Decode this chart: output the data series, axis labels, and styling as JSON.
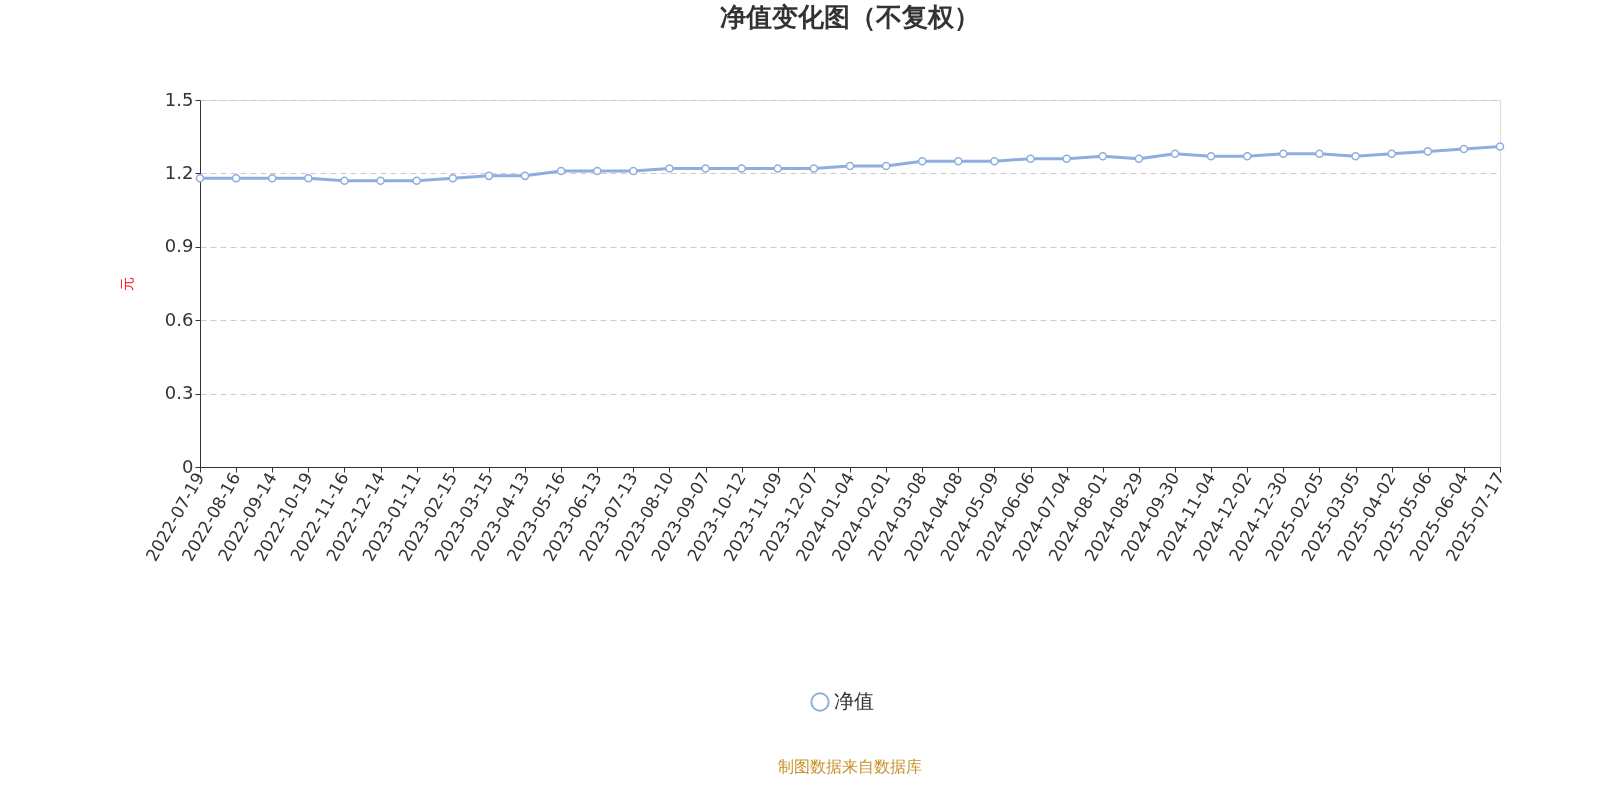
{
  "chart_data": {
    "type": "line",
    "title": "净值变化图（不复权）",
    "ylabel": "元",
    "categories": [
      "2022-07-19",
      "2022-08-16",
      "2022-09-14",
      "2022-10-19",
      "2022-11-16",
      "2022-12-14",
      "2023-01-11",
      "2023-02-15",
      "2023-03-15",
      "2023-04-13",
      "2023-05-16",
      "2023-06-13",
      "2023-07-13",
      "2023-08-10",
      "2023-09-07",
      "2023-10-12",
      "2023-11-09",
      "2023-12-07",
      "2024-01-04",
      "2024-02-01",
      "2024-03-08",
      "2024-04-08",
      "2024-05-09",
      "2024-06-06",
      "2024-07-04",
      "2024-08-01",
      "2024-08-29",
      "2024-09-30",
      "2024-11-04",
      "2024-12-02",
      "2024-12-30",
      "2025-02-05",
      "2025-03-05",
      "2025-04-02",
      "2025-05-06",
      "2025-06-04",
      "2025-07-17"
    ],
    "series": [
      {
        "name": "净值",
        "color": "#8eaee0",
        "values": [
          1.18,
          1.18,
          1.18,
          1.18,
          1.17,
          1.17,
          1.17,
          1.18,
          1.19,
          1.19,
          1.21,
          1.21,
          1.21,
          1.22,
          1.22,
          1.22,
          1.22,
          1.22,
          1.23,
          1.23,
          1.25,
          1.25,
          1.25,
          1.26,
          1.26,
          1.27,
          1.26,
          1.28,
          1.27,
          1.27,
          1.28,
          1.28,
          1.27,
          1.28,
          1.29,
          1.3,
          1.31
        ]
      }
    ],
    "ylim": [
      0,
      1.5
    ],
    "yticks": [
      0,
      0.3,
      0.6,
      0.9,
      1.2,
      1.5
    ],
    "grid": "y",
    "legend": "bottom",
    "marker": "circle",
    "line_style": "solid",
    "annotations": [
      "制图数据来自数据库"
    ]
  }
}
